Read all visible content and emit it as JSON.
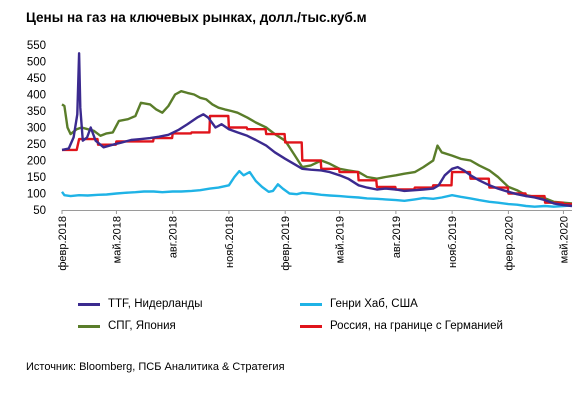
{
  "chart_data": {
    "type": "line",
    "title": "Цены на газ на ключевых рынках, долл./тыс.куб.м",
    "xlabel": "",
    "ylabel": "",
    "ylim": [
      50,
      550
    ],
    "yticks": [
      50,
      100,
      150,
      200,
      250,
      300,
      350,
      400,
      450,
      500,
      550
    ],
    "xlim": [
      "2018-02-01",
      "2020-05-15"
    ],
    "xticks": [
      {
        "label": "февр.2018",
        "date": "2018-02-01"
      },
      {
        "label": "май.2018",
        "date": "2018-05-01"
      },
      {
        "label": "авг.2018",
        "date": "2018-08-01"
      },
      {
        "label": "нояб.2018",
        "date": "2018-11-01"
      },
      {
        "label": "февр.2019",
        "date": "2019-02-01"
      },
      {
        "label": "май.2019",
        "date": "2019-05-01"
      },
      {
        "label": "авг.2019",
        "date": "2019-08-01"
      },
      {
        "label": "нояб.2019",
        "date": "2019-11-01"
      },
      {
        "label": "февр.2020",
        "date": "2020-02-01"
      },
      {
        "label": "май.2020",
        "date": "2020-05-01"
      }
    ],
    "grid": false,
    "legend_position": "bottom",
    "series": [
      {
        "name": "TTF, Нидерланды",
        "color": "#3b2a8f",
        "points": [
          [
            "2018-02-01",
            232
          ],
          [
            "2018-02-12",
            236
          ],
          [
            "2018-02-20",
            270
          ],
          [
            "2018-02-26",
            340
          ],
          [
            "2018-03-01",
            525
          ],
          [
            "2018-03-03",
            360
          ],
          [
            "2018-03-07",
            260
          ],
          [
            "2018-03-14",
            270
          ],
          [
            "2018-03-20",
            300
          ],
          [
            "2018-03-28",
            260
          ],
          [
            "2018-04-10",
            240
          ],
          [
            "2018-04-25",
            248
          ],
          [
            "2018-05-10",
            255
          ],
          [
            "2018-05-25",
            262
          ],
          [
            "2018-06-10",
            265
          ],
          [
            "2018-06-25",
            268
          ],
          [
            "2018-07-10",
            272
          ],
          [
            "2018-07-25",
            278
          ],
          [
            "2018-08-10",
            292
          ],
          [
            "2018-08-25",
            310
          ],
          [
            "2018-09-10",
            330
          ],
          [
            "2018-09-20",
            340
          ],
          [
            "2018-09-28",
            330
          ],
          [
            "2018-10-10",
            300
          ],
          [
            "2018-10-20",
            310
          ],
          [
            "2018-11-01",
            295
          ],
          [
            "2018-11-15",
            285
          ],
          [
            "2018-12-01",
            275
          ],
          [
            "2018-12-15",
            262
          ],
          [
            "2019-01-01",
            245
          ],
          [
            "2019-01-15",
            225
          ],
          [
            "2019-02-01",
            205
          ],
          [
            "2019-02-15",
            190
          ],
          [
            "2019-03-01",
            175
          ],
          [
            "2019-03-15",
            172
          ],
          [
            "2019-04-01",
            170
          ],
          [
            "2019-04-15",
            165
          ],
          [
            "2019-05-01",
            155
          ],
          [
            "2019-05-15",
            145
          ],
          [
            "2019-06-01",
            125
          ],
          [
            "2019-06-15",
            118
          ],
          [
            "2019-07-01",
            112
          ],
          [
            "2019-07-15",
            115
          ],
          [
            "2019-08-01",
            112
          ],
          [
            "2019-08-15",
            108
          ],
          [
            "2019-09-01",
            110
          ],
          [
            "2019-09-15",
            112
          ],
          [
            "2019-10-01",
            115
          ],
          [
            "2019-10-10",
            125
          ],
          [
            "2019-10-20",
            155
          ],
          [
            "2019-11-01",
            175
          ],
          [
            "2019-11-10",
            180
          ],
          [
            "2019-11-20",
            170
          ],
          [
            "2019-12-01",
            155
          ],
          [
            "2019-12-15",
            140
          ],
          [
            "2020-01-01",
            125
          ],
          [
            "2020-01-15",
            115
          ],
          [
            "2020-02-01",
            105
          ],
          [
            "2020-02-15",
            98
          ],
          [
            "2020-03-01",
            92
          ],
          [
            "2020-03-15",
            88
          ],
          [
            "2020-04-01",
            80
          ],
          [
            "2020-04-15",
            70
          ],
          [
            "2020-05-01",
            65
          ],
          [
            "2020-05-15",
            62
          ]
        ]
      },
      {
        "name": "Генри Хаб, США",
        "color": "#1fb3e6",
        "points": [
          [
            "2018-02-01",
            105
          ],
          [
            "2018-02-05",
            95
          ],
          [
            "2018-02-15",
            92
          ],
          [
            "2018-03-01",
            95
          ],
          [
            "2018-03-15",
            94
          ],
          [
            "2018-04-01",
            96
          ],
          [
            "2018-04-15",
            97
          ],
          [
            "2018-05-01",
            100
          ],
          [
            "2018-05-15",
            102
          ],
          [
            "2018-06-01",
            104
          ],
          [
            "2018-06-15",
            106
          ],
          [
            "2018-07-01",
            106
          ],
          [
            "2018-07-15",
            104
          ],
          [
            "2018-08-01",
            106
          ],
          [
            "2018-08-15",
            106
          ],
          [
            "2018-09-01",
            108
          ],
          [
            "2018-09-15",
            110
          ],
          [
            "2018-10-01",
            115
          ],
          [
            "2018-10-15",
            118
          ],
          [
            "2018-11-01",
            125
          ],
          [
            "2018-11-10",
            150
          ],
          [
            "2018-11-18",
            168
          ],
          [
            "2018-11-25",
            155
          ],
          [
            "2018-12-05",
            165
          ],
          [
            "2018-12-15",
            138
          ],
          [
            "2018-12-25",
            120
          ],
          [
            "2019-01-05",
            105
          ],
          [
            "2019-01-12",
            108
          ],
          [
            "2019-01-20",
            128
          ],
          [
            "2019-01-28",
            115
          ],
          [
            "2019-02-08",
            100
          ],
          [
            "2019-02-20",
            98
          ],
          [
            "2019-03-01",
            102
          ],
          [
            "2019-03-15",
            100
          ],
          [
            "2019-04-01",
            96
          ],
          [
            "2019-04-15",
            94
          ],
          [
            "2019-05-01",
            92
          ],
          [
            "2019-05-15",
            90
          ],
          [
            "2019-06-01",
            88
          ],
          [
            "2019-06-15",
            85
          ],
          [
            "2019-07-01",
            84
          ],
          [
            "2019-07-15",
            82
          ],
          [
            "2019-08-01",
            80
          ],
          [
            "2019-08-15",
            78
          ],
          [
            "2019-09-01",
            82
          ],
          [
            "2019-09-15",
            86
          ],
          [
            "2019-10-01",
            84
          ],
          [
            "2019-10-15",
            88
          ],
          [
            "2019-11-01",
            95
          ],
          [
            "2019-11-15",
            90
          ],
          [
            "2019-12-01",
            85
          ],
          [
            "2019-12-15",
            80
          ],
          [
            "2020-01-01",
            75
          ],
          [
            "2020-01-15",
            72
          ],
          [
            "2020-02-01",
            68
          ],
          [
            "2020-02-15",
            66
          ],
          [
            "2020-03-01",
            62
          ],
          [
            "2020-03-15",
            60
          ],
          [
            "2020-04-01",
            62
          ],
          [
            "2020-04-15",
            60
          ],
          [
            "2020-05-01",
            62
          ],
          [
            "2020-05-15",
            64
          ]
        ]
      },
      {
        "name": "СПГ, Япония",
        "color": "#5a7d2a",
        "points": [
          [
            "2018-02-01",
            370
          ],
          [
            "2018-02-05",
            365
          ],
          [
            "2018-02-10",
            300
          ],
          [
            "2018-02-15",
            280
          ],
          [
            "2018-02-25",
            295
          ],
          [
            "2018-03-05",
            300
          ],
          [
            "2018-03-15",
            295
          ],
          [
            "2018-03-25",
            290
          ],
          [
            "2018-04-05",
            275
          ],
          [
            "2018-04-15",
            282
          ],
          [
            "2018-04-25",
            285
          ],
          [
            "2018-05-05",
            320
          ],
          [
            "2018-05-20",
            325
          ],
          [
            "2018-06-01",
            335
          ],
          [
            "2018-06-10",
            375
          ],
          [
            "2018-06-25",
            370
          ],
          [
            "2018-07-05",
            355
          ],
          [
            "2018-07-15",
            345
          ],
          [
            "2018-07-25",
            365
          ],
          [
            "2018-08-05",
            400
          ],
          [
            "2018-08-15",
            410
          ],
          [
            "2018-08-25",
            405
          ],
          [
            "2018-09-05",
            400
          ],
          [
            "2018-09-15",
            390
          ],
          [
            "2018-09-25",
            385
          ],
          [
            "2018-10-05",
            370
          ],
          [
            "2018-10-15",
            360
          ],
          [
            "2018-10-25",
            355
          ],
          [
            "2018-11-05",
            350
          ],
          [
            "2018-11-15",
            345
          ],
          [
            "2018-12-01",
            330
          ],
          [
            "2018-12-15",
            315
          ],
          [
            "2019-01-01",
            300
          ],
          [
            "2019-01-15",
            280
          ],
          [
            "2019-02-01",
            260
          ],
          [
            "2019-02-15",
            220
          ],
          [
            "2019-03-01",
            180
          ],
          [
            "2019-03-15",
            185
          ],
          [
            "2019-04-01",
            200
          ],
          [
            "2019-04-15",
            190
          ],
          [
            "2019-05-01",
            175
          ],
          [
            "2019-05-15",
            170
          ],
          [
            "2019-06-01",
            165
          ],
          [
            "2019-06-15",
            150
          ],
          [
            "2019-07-01",
            145
          ],
          [
            "2019-07-15",
            150
          ],
          [
            "2019-08-01",
            155
          ],
          [
            "2019-08-15",
            160
          ],
          [
            "2019-09-01",
            165
          ],
          [
            "2019-09-15",
            180
          ],
          [
            "2019-10-01",
            200
          ],
          [
            "2019-10-08",
            245
          ],
          [
            "2019-10-15",
            225
          ],
          [
            "2019-11-01",
            215
          ],
          [
            "2019-11-15",
            205
          ],
          [
            "2019-12-01",
            200
          ],
          [
            "2019-12-15",
            185
          ],
          [
            "2020-01-01",
            170
          ],
          [
            "2020-01-15",
            150
          ],
          [
            "2020-02-01",
            120
          ],
          [
            "2020-02-15",
            110
          ],
          [
            "2020-03-01",
            95
          ],
          [
            "2020-03-15",
            90
          ],
          [
            "2020-04-01",
            85
          ],
          [
            "2020-04-15",
            75
          ],
          [
            "2020-05-01",
            72
          ],
          [
            "2020-05-15",
            70
          ]
        ]
      },
      {
        "name": "Россия, на границе с Германией",
        "color": "#e0141b",
        "points": [
          [
            "2018-02-01",
            232
          ],
          [
            "2018-02-25",
            232
          ],
          [
            "2018-03-01",
            265
          ],
          [
            "2018-03-31",
            265
          ],
          [
            "2018-04-01",
            248
          ],
          [
            "2018-04-30",
            248
          ],
          [
            "2018-05-01",
            258
          ],
          [
            "2018-06-30",
            258
          ],
          [
            "2018-07-01",
            268
          ],
          [
            "2018-07-31",
            268
          ],
          [
            "2018-08-01",
            282
          ],
          [
            "2018-08-31",
            282
          ],
          [
            "2018-09-01",
            285
          ],
          [
            "2018-09-30",
            285
          ],
          [
            "2018-10-01",
            335
          ],
          [
            "2018-10-31",
            335
          ],
          [
            "2018-11-01",
            300
          ],
          [
            "2018-11-30",
            300
          ],
          [
            "2018-12-01",
            295
          ],
          [
            "2018-12-31",
            295
          ],
          [
            "2019-01-01",
            280
          ],
          [
            "2019-01-31",
            280
          ],
          [
            "2019-02-01",
            255
          ],
          [
            "2019-02-28",
            255
          ],
          [
            "2019-03-01",
            200
          ],
          [
            "2019-03-31",
            200
          ],
          [
            "2019-04-01",
            175
          ],
          [
            "2019-04-30",
            175
          ],
          [
            "2019-05-01",
            165
          ],
          [
            "2019-05-31",
            165
          ],
          [
            "2019-06-01",
            140
          ],
          [
            "2019-06-30",
            140
          ],
          [
            "2019-07-01",
            120
          ],
          [
            "2019-07-31",
            120
          ],
          [
            "2019-08-01",
            112
          ],
          [
            "2019-08-31",
            112
          ],
          [
            "2019-09-01",
            118
          ],
          [
            "2019-09-30",
            118
          ],
          [
            "2019-10-01",
            125
          ],
          [
            "2019-10-31",
            125
          ],
          [
            "2019-11-01",
            165
          ],
          [
            "2019-11-30",
            165
          ],
          [
            "2019-12-01",
            145
          ],
          [
            "2019-12-31",
            145
          ],
          [
            "2020-01-01",
            118
          ],
          [
            "2020-01-31",
            118
          ],
          [
            "2020-02-01",
            100
          ],
          [
            "2020-02-29",
            100
          ],
          [
            "2020-03-01",
            92
          ],
          [
            "2020-03-31",
            92
          ],
          [
            "2020-04-01",
            72
          ],
          [
            "2020-04-30",
            72
          ],
          [
            "2020-05-01",
            68
          ],
          [
            "2020-05-15",
            68
          ]
        ]
      }
    ]
  },
  "legend": [
    {
      "label": "TTF, Нидерланды",
      "color": "#3b2a8f"
    },
    {
      "label": "Генри Хаб, США",
      "color": "#1fb3e6"
    },
    {
      "label": "СПГ, Япония",
      "color": "#5a7d2a"
    },
    {
      "label": "Россия, на границе с Германией",
      "color": "#e0141b"
    }
  ],
  "source": "Источник: Bloomberg, ПСБ Аналитика & Стратегия"
}
